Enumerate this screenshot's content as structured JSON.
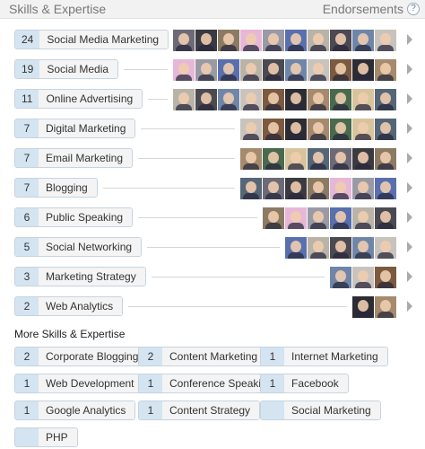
{
  "header": {
    "title": "Skills & Expertise",
    "endorsements_label": "Endorsements",
    "help_label": "?"
  },
  "skills": [
    {
      "count": "24",
      "name": "Social Media Marketing",
      "endorsers": 10
    },
    {
      "count": "19",
      "name": "Social Media",
      "endorsers": 10
    },
    {
      "count": "11",
      "name": "Online Advertising",
      "endorsers": 10
    },
    {
      "count": "7",
      "name": "Digital Marketing",
      "endorsers": 7
    },
    {
      "count": "7",
      "name": "Email Marketing",
      "endorsers": 7
    },
    {
      "count": "7",
      "name": "Blogging",
      "endorsers": 7
    },
    {
      "count": "6",
      "name": "Public Speaking",
      "endorsers": 6
    },
    {
      "count": "5",
      "name": "Social Networking",
      "endorsers": 5
    },
    {
      "count": "3",
      "name": "Marketing Strategy",
      "endorsers": 3
    },
    {
      "count": "2",
      "name": "Web Analytics",
      "endorsers": 2
    }
  ],
  "avatar_colors": [
    "#6d6a78",
    "#3b3a40",
    "#8c7b63",
    "#e7b7d8",
    "#9a9aa6",
    "#5a6fae",
    "#b9b3a8",
    "#4b4a52",
    "#6f86a8",
    "#c9c3bd",
    "#7b5a3f",
    "#2c2c34",
    "#a58a6d",
    "#4a6a4e",
    "#d8c49c",
    "#556677"
  ],
  "more": {
    "title": "More Skills & Expertise",
    "items": [
      {
        "count": "2",
        "name": "Corporate Blogging"
      },
      {
        "count": "2",
        "name": "Content Marketing"
      },
      {
        "count": "1",
        "name": "Internet Marketing"
      },
      {
        "count": "1",
        "name": "Web Development"
      },
      {
        "count": "1",
        "name": "Conference Speaking"
      },
      {
        "count": "1",
        "name": "Facebook"
      },
      {
        "count": "1",
        "name": "Google Analytics"
      },
      {
        "count": "1",
        "name": "Content Strategy"
      },
      {
        "count": "",
        "name": "Social Marketing"
      },
      {
        "count": "",
        "name": "PHP"
      }
    ]
  }
}
